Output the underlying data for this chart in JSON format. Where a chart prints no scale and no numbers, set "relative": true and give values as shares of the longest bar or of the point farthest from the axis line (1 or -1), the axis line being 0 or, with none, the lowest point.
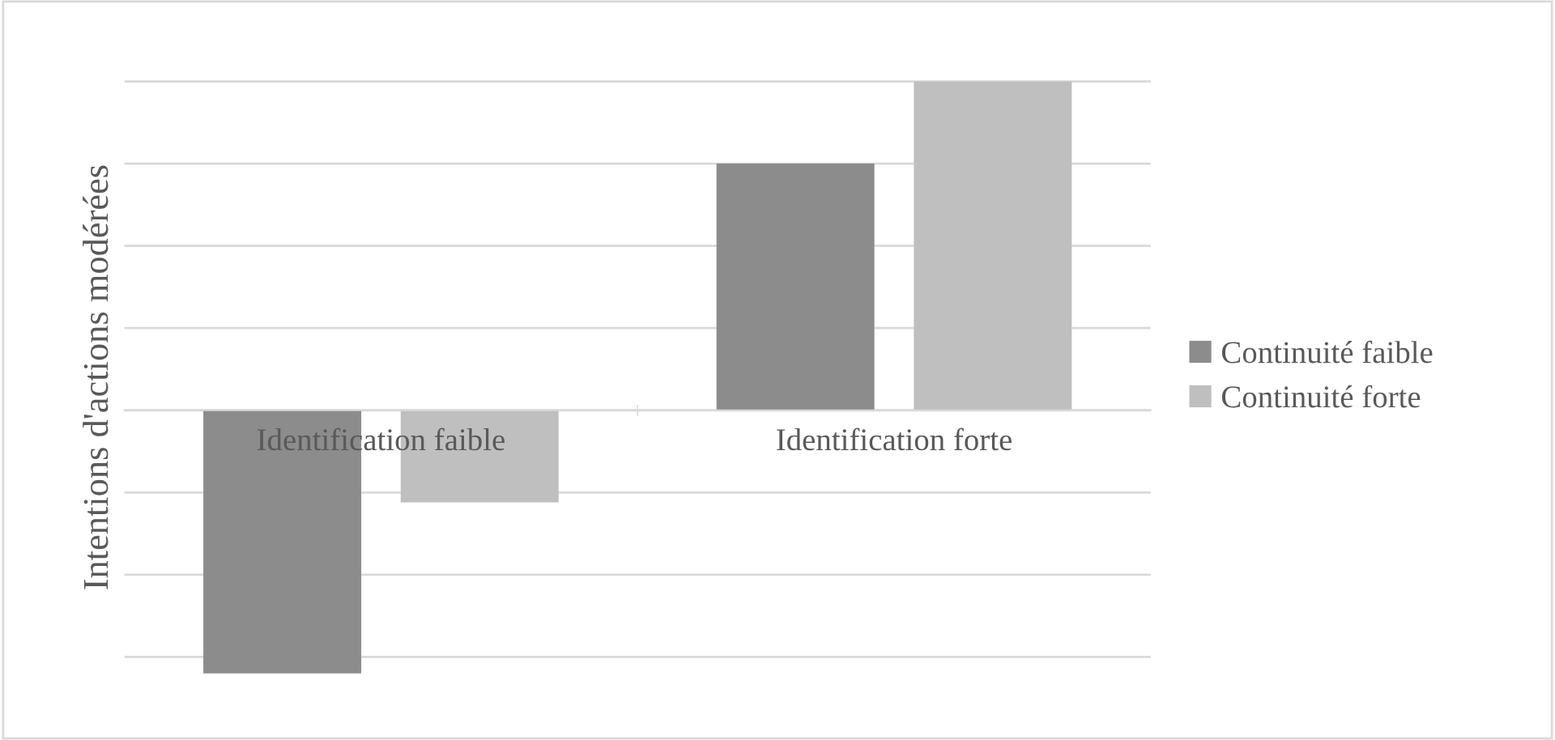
{
  "chart_data": {
    "type": "bar",
    "relative": true,
    "ylabel": "Intentions d'actions modérées",
    "categories": [
      "Identification faible",
      "Identification forte"
    ],
    "series": [
      {
        "name": "Continuité faible",
        "color": "#8c8c8c",
        "values": [
          -0.8,
          0.75
        ]
      },
      {
        "name": "Continuité forte",
        "color": "#bfbfbf",
        "values": [
          -0.28,
          1
        ]
      }
    ],
    "grid": "y",
    "legend": "right"
  }
}
